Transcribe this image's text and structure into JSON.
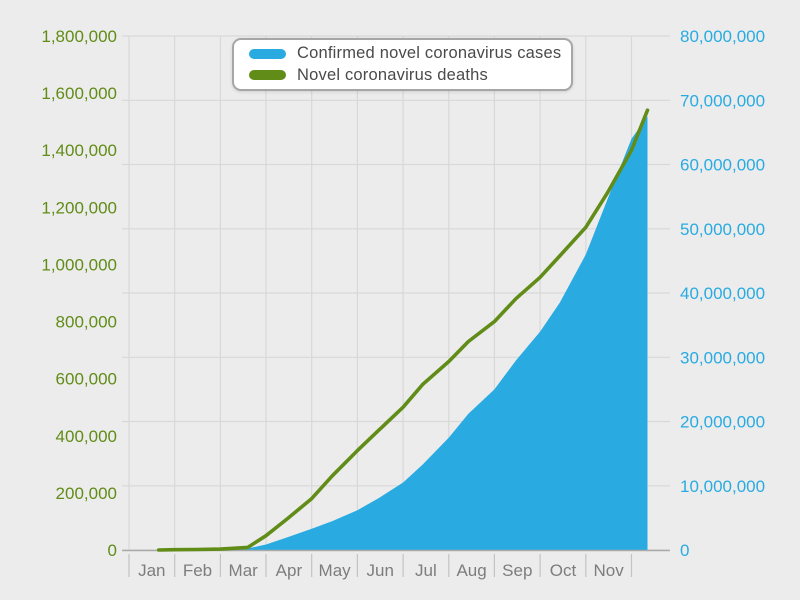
{
  "legend": {
    "items": [
      {
        "label": "Confirmed novel coronavirus cases",
        "color": "#29abe2"
      },
      {
        "label": "Novel coronavirus deaths",
        "color": "#618c17"
      }
    ]
  },
  "chart_data": {
    "type": "area",
    "title": "",
    "dual_axis": true,
    "grid": true,
    "legend_position": "top-left-inside",
    "x_axis": {
      "tick_labels": [
        "Jan",
        "Feb",
        "Mar",
        "Apr",
        "May",
        "Jun",
        "Jul",
        "Aug",
        "Sep",
        "Oct",
        "Nov"
      ],
      "domain_note": "January 2020 through early December 2020",
      "label_color": "#7d7d7d"
    },
    "left_axis": {
      "series": "Novel coronavirus deaths",
      "min": 0,
      "max": 1800000,
      "tick_labels": [
        "1,800,000",
        "1,600,000",
        "1,400,000",
        "1,200,000",
        "1,000,000",
        "800,000",
        "600,000",
        "400,000",
        "200,000",
        "0"
      ],
      "color": "#618c17"
    },
    "right_axis": {
      "series": "Confirmed novel coronavirus cases",
      "min": 0,
      "max": 80000000,
      "tick_labels": [
        "80,000,000",
        "70,000,000",
        "60,000,000",
        "50,000,000",
        "40,000,000",
        "30,000,000",
        "20,000,000",
        "10,000,000",
        "0"
      ],
      "color": "#29abe2"
    },
    "points": {
      "dates": [
        "Jan 20",
        "Feb 1",
        "Feb 15",
        "Mar 1",
        "Mar 19",
        "Apr 1",
        "Apr 15",
        "May 1",
        "May 15",
        "Jun 1",
        "Jun 15",
        "Jul 1",
        "Jul 14",
        "Aug 1",
        "Aug 14",
        "Sep 1",
        "Sep 15",
        "Oct 1",
        "Oct 14",
        "Nov 1",
        "Nov 15",
        "Dec 1",
        "Dec 11"
      ],
      "t_months": [
        0.65,
        1.0,
        1.47,
        2.0,
        2.6,
        3.0,
        3.47,
        4.0,
        4.45,
        5.0,
        5.47,
        6.0,
        6.43,
        7.0,
        7.43,
        8.0,
        8.47,
        9.0,
        9.43,
        10.0,
        10.47,
        11.0,
        11.35
      ],
      "cases": [
        600,
        12000,
        69000,
        88000,
        250000,
        860000,
        2000000,
        3300000,
        4500000,
        6200000,
        8100000,
        10500000,
        13300000,
        17500000,
        21200000,
        25000000,
        29500000,
        34000000,
        38500000,
        46000000,
        54500000,
        64000000,
        67500000
      ],
      "deaths": [
        20,
        1000,
        1700,
        3000,
        9000,
        50000,
        110000,
        180000,
        260000,
        348000,
        420000,
        500000,
        580000,
        660000,
        730000,
        800000,
        880000,
        955000,
        1030000,
        1130000,
        1250000,
        1400000,
        1540000
      ]
    },
    "series": [
      {
        "name": "Confirmed novel coronavirus cases",
        "type": "area",
        "axis": "right",
        "color": "#29abe2",
        "values_key": "cases"
      },
      {
        "name": "Novel coronavirus deaths",
        "type": "line",
        "axis": "left",
        "color": "#618c17",
        "values_key": "deaths"
      }
    ],
    "colors": {
      "background": "#ececec",
      "gridline": "#d8d8d8",
      "tick": "#c3c3c3",
      "baseline": "#a9a9a9",
      "month_label": "#7d7d7d",
      "legend_text": "#4a4a4a",
      "legend_border": "#a6a6a6"
    }
  }
}
